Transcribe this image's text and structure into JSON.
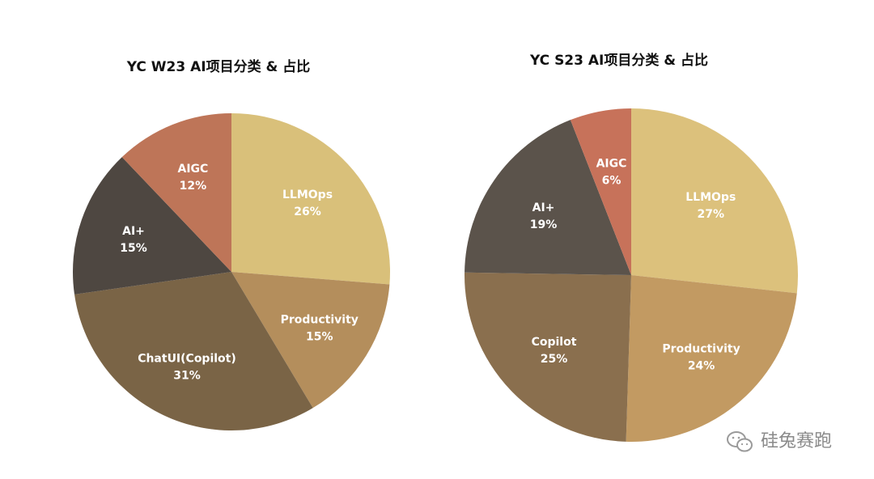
{
  "chart_data": [
    {
      "type": "pie",
      "title": "YC W23 AI项目分类 & 占比",
      "slices": [
        {
          "label": "LLMOps",
          "value": 26,
          "value_label": "26%",
          "color": "#D9C07A"
        },
        {
          "label": "Productivity",
          "value": 15,
          "value_label": "15%",
          "color": "#B48E5C"
        },
        {
          "label": "ChatUI(Copilot)",
          "value": 31,
          "value_label": "31%",
          "color": "#7A6446"
        },
        {
          "label": "AI+",
          "value": 15,
          "value_label": "15%",
          "color": "#4E4741"
        },
        {
          "label": "AIGC",
          "value": 12,
          "value_label": "12%",
          "color": "#BE7558"
        }
      ]
    },
    {
      "type": "pie",
      "title": "YC S23 AI项目分类 & 占比",
      "slices": [
        {
          "label": "LLMOps",
          "value": 27,
          "value_label": "27%",
          "color": "#DCC17C"
        },
        {
          "label": "Productivity",
          "value": 24,
          "value_label": "24%",
          "color": "#C29A62"
        },
        {
          "label": "Copilot",
          "value": 25,
          "value_label": "25%",
          "color": "#8A6F4E"
        },
        {
          "label": "AI+",
          "value": 19,
          "value_label": "19%",
          "color": "#5B534B"
        },
        {
          "label": "AIGC",
          "value": 6,
          "value_label": "6%",
          "color": "#C7725A"
        }
      ]
    }
  ],
  "watermark": {
    "text": "硅兔赛跑",
    "icon": "wechat-icon"
  }
}
